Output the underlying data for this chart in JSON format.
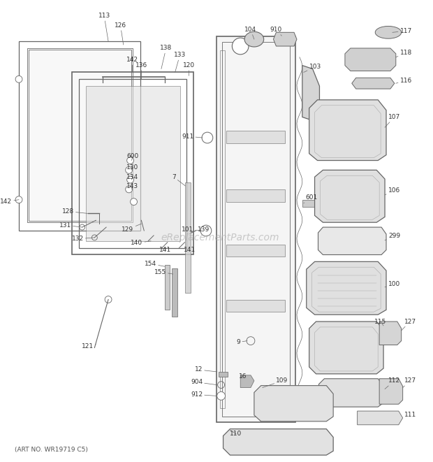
{
  "bg_color": "#ffffff",
  "line_color": "#666666",
  "art_no": "(ART NO. WR19719 C5)",
  "watermark": "eReplacementParts.com",
  "fig_width": 6.2,
  "fig_height": 6.61,
  "dpi": 100
}
